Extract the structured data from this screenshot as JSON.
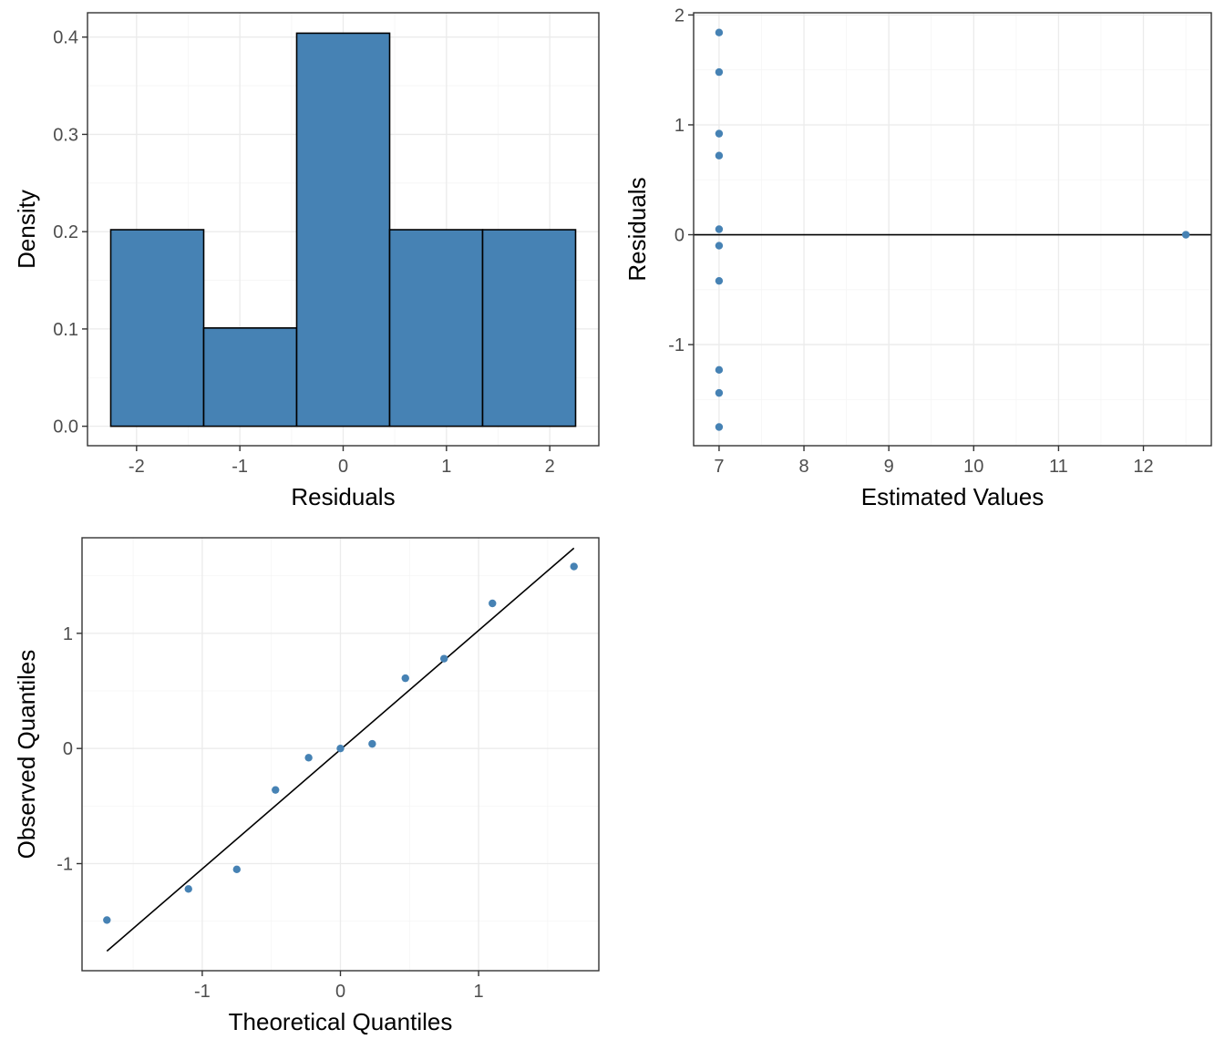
{
  "colors": {
    "fill": "#4682b4",
    "point": "#4682b4",
    "line": "#000000",
    "grid": "#ebebeb"
  },
  "chart_data": [
    {
      "id": "histogram",
      "type": "bar",
      "title": "",
      "xlabel": "Residuals",
      "ylabel": "Density",
      "xlim": [
        -2.475,
        2.475
      ],
      "ylim": [
        -0.02,
        0.425
      ],
      "xticks": [
        -2,
        -1,
        0,
        1,
        2
      ],
      "xtick_labels": [
        "-2",
        "-1",
        "0",
        "1",
        "2"
      ],
      "yticks": [
        0.0,
        0.1,
        0.2,
        0.3,
        0.4
      ],
      "ytick_labels": [
        "0.0",
        "0.1",
        "0.2",
        "0.3",
        "0.4"
      ],
      "bins": [
        {
          "x0": -2.25,
          "x1": -1.35,
          "value": 0.202
        },
        {
          "x0": -1.35,
          "x1": -0.45,
          "value": 0.101
        },
        {
          "x0": -0.45,
          "x1": 0.45,
          "value": 0.404
        },
        {
          "x0": 0.45,
          "x1": 1.35,
          "value": 0.202
        },
        {
          "x0": 1.35,
          "x1": 2.25,
          "value": 0.202
        }
      ],
      "grid": true
    },
    {
      "id": "residuals-vs-fitted",
      "type": "scatter",
      "title": "",
      "xlabel": "Estimated Values",
      "ylabel": "Residuals",
      "xlim": [
        6.7,
        12.8
      ],
      "ylim": [
        -1.92,
        2.02
      ],
      "xticks": [
        7,
        8,
        9,
        10,
        11,
        12
      ],
      "xtick_labels": [
        "7",
        "8",
        "9",
        "10",
        "11",
        "12"
      ],
      "yticks": [
        -1,
        0,
        1,
        2
      ],
      "ytick_labels": [
        "-1",
        "0",
        "1",
        "2"
      ],
      "points": [
        {
          "x": 7,
          "y": 1.84
        },
        {
          "x": 7,
          "y": 1.48
        },
        {
          "x": 7,
          "y": 0.92
        },
        {
          "x": 7,
          "y": 0.72
        },
        {
          "x": 7,
          "y": 0.05
        },
        {
          "x": 7,
          "y": -0.1
        },
        {
          "x": 7,
          "y": -0.42
        },
        {
          "x": 7,
          "y": -1.23
        },
        {
          "x": 7,
          "y": -1.44
        },
        {
          "x": 7,
          "y": -1.75
        },
        {
          "x": 12.5,
          "y": 0.0
        }
      ],
      "hline": 0,
      "grid": true
    },
    {
      "id": "qq-plot",
      "type": "scatter",
      "title": "",
      "xlabel": "Theoretical Quantiles",
      "ylabel": "Observed Quantiles",
      "xlim": [
        -1.87,
        1.87
      ],
      "ylim": [
        -1.93,
        1.83
      ],
      "xticks": [
        -1,
        0,
        1
      ],
      "xtick_labels": [
        "-1",
        "0",
        "1"
      ],
      "yticks": [
        -1,
        0,
        1
      ],
      "ytick_labels": [
        "-1",
        "0",
        "1"
      ],
      "points": [
        {
          "x": -1.69,
          "y": -1.49
        },
        {
          "x": -1.1,
          "y": -1.22
        },
        {
          "x": -0.75,
          "y": -1.05
        },
        {
          "x": -0.47,
          "y": -0.36
        },
        {
          "x": -0.23,
          "y": -0.08
        },
        {
          "x": 0.0,
          "y": 0.0
        },
        {
          "x": 0.23,
          "y": 0.04
        },
        {
          "x": 0.47,
          "y": 0.61
        },
        {
          "x": 0.75,
          "y": 0.78
        },
        {
          "x": 1.1,
          "y": 1.26
        },
        {
          "x": 1.69,
          "y": 1.58
        }
      ],
      "refline": {
        "x": [
          -1.69,
          1.69
        ],
        "y": [
          -1.76,
          1.74
        ]
      },
      "grid": true
    }
  ]
}
